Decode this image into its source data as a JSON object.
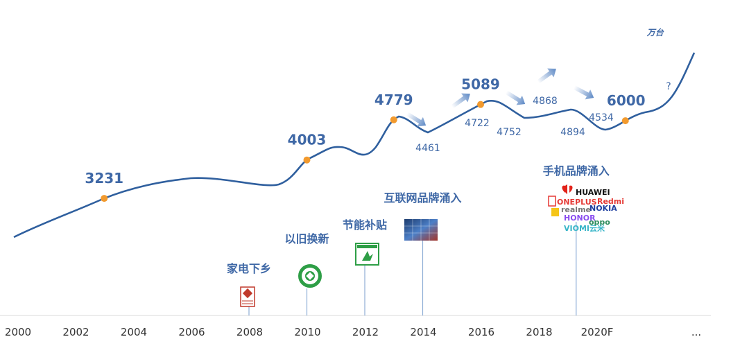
{
  "chart_data": {
    "type": "line",
    "unit": "万台",
    "x_axis": {
      "ticks": [
        "2000",
        "2002",
        "2004",
        "2006",
        "2008",
        "2010",
        "2012",
        "2014",
        "2016",
        "2018",
        "2020F",
        "..."
      ]
    },
    "series": [
      {
        "values": [
          {
            "x": 2003,
            "y": 3231
          },
          {
            "x": 2010,
            "y": 4003
          },
          {
            "x": 2013,
            "y": 4779
          },
          {
            "x": 2016,
            "y": 5089
          },
          {
            "x": 2021,
            "y": 6000
          }
        ]
      }
    ],
    "peak_labels": [
      {
        "text": "3231"
      },
      {
        "text": "4003"
      },
      {
        "text": "4779"
      },
      {
        "text": "5089"
      },
      {
        "text": "6000"
      }
    ],
    "small_labels": [
      {
        "text": "4461"
      },
      {
        "text": "4722"
      },
      {
        "text": "4752"
      },
      {
        "text": "4868"
      },
      {
        "text": "4894"
      },
      {
        "text": "4534"
      },
      {
        "text": "?"
      }
    ],
    "events": [
      {
        "text": "家电下乡",
        "year": 2008
      },
      {
        "text": "以旧换新",
        "year": 2010
      },
      {
        "text": "节能补贴",
        "year": 2012
      },
      {
        "text": "互联网品牌涌入",
        "year": 2014
      },
      {
        "text": "手机品牌涌入",
        "year": 2019.3
      }
    ],
    "brands": [
      "HUAWEI",
      "ONEPLUS",
      "Redmi",
      "realme",
      "NOKIA",
      "HONOR",
      "oppo",
      "VIOMI云米"
    ],
    "colors": {
      "line": "#2f5f9e",
      "marker": "#f29a2e",
      "label": "#3f68a6",
      "arrow": "#6f9ad2"
    }
  }
}
